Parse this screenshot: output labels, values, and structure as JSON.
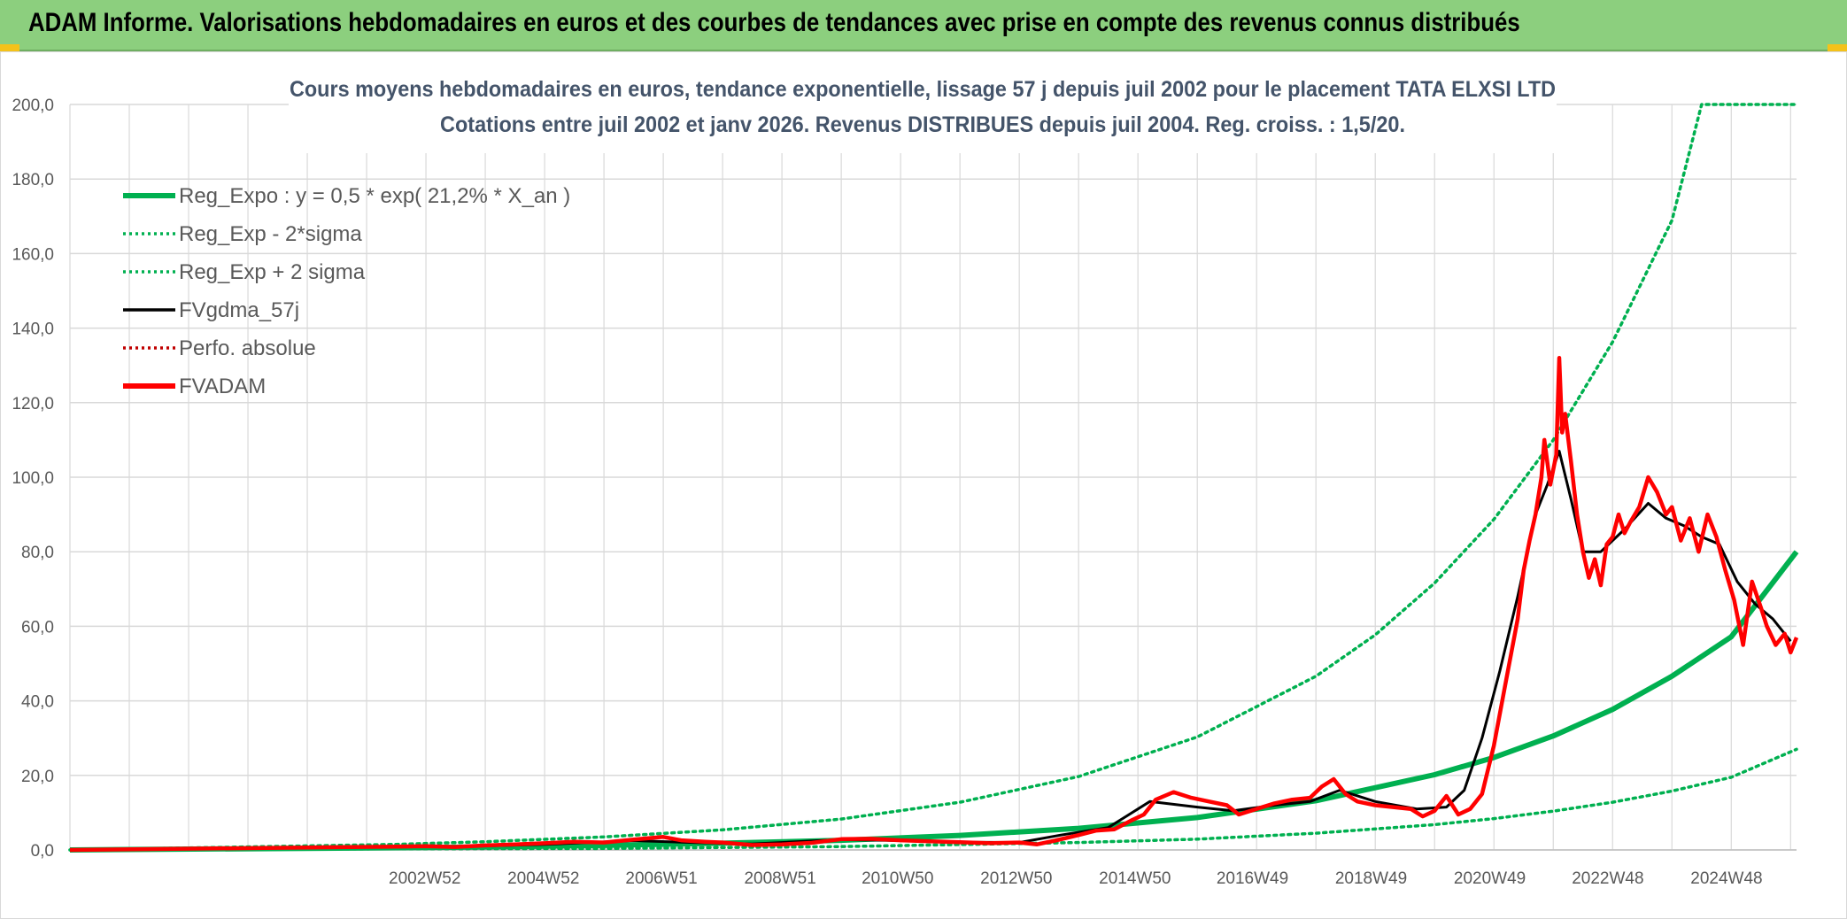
{
  "banner": {
    "title": "ADAM Informe. Valorisations hebdomadaires en euros et des courbes de tendances avec prise en compte des revenus connus distribués"
  },
  "colors": {
    "banner_bg": "#8ccf7e",
    "reg_green": "#00b050",
    "red": "#ff0000",
    "black": "#000000",
    "grid": "#d9d9d9",
    "axis_text": "#595959",
    "title_text": "#44546a"
  },
  "chart_data": {
    "type": "line",
    "title": "Cours moyens hebdomadaires en euros, tendance exponentielle, lissage 57 j depuis juil 2002 pour le placement TATA  ELXSI LTD",
    "subtitle": "Cotations entre juil 2002 et janv 2026. Revenus DISTRIBUES depuis juil 2004. Reg. croiss. : 1,5/20.",
    "xlabel": "",
    "ylabel": "",
    "x_range": [
      1997.0,
      2026.1
    ],
    "ylim": [
      0,
      200
    ],
    "y_ticks": [
      "0,0",
      "20,0",
      "40,0",
      "60,0",
      "80,0",
      "100,0",
      "120,0",
      "140,0",
      "160,0",
      "180,0",
      "200,0"
    ],
    "x_ticks": [
      {
        "label": "2002W52",
        "x": 2002.98
      },
      {
        "label": "2004W52",
        "x": 2004.98
      },
      {
        "label": "2006W51",
        "x": 2006.97
      },
      {
        "label": "2008W51",
        "x": 2008.97
      },
      {
        "label": "2010W50",
        "x": 2010.95
      },
      {
        "label": "2012W50",
        "x": 2012.95
      },
      {
        "label": "2014W50",
        "x": 2014.95
      },
      {
        "label": "2016W49",
        "x": 2016.93
      },
      {
        "label": "2018W49",
        "x": 2018.93
      },
      {
        "label": "2020W49",
        "x": 2020.93
      },
      {
        "label": "2022W48",
        "x": 2022.92
      },
      {
        "label": "2024W48",
        "x": 2024.92
      }
    ],
    "grid": true,
    "legend_position": "top-left",
    "series": [
      {
        "name": "Reg_Expo : y = 0,5 * exp( 21,2% *  X_an )",
        "style": "solid-thick",
        "color": "#00b050",
        "x": [
          1997.0,
          2002.5,
          2004,
          2006,
          2008,
          2010,
          2012,
          2014,
          2016,
          2018,
          2020,
          2021,
          2022,
          2023,
          2024,
          2025,
          2026.1
        ],
        "y": [
          0,
          0.6,
          0.8,
          1.2,
          1.8,
          2.6,
          3.9,
          5.8,
          8.7,
          13.2,
          20.2,
          24.8,
          30.6,
          37.7,
          46.6,
          57.2,
          80.0
        ]
      },
      {
        "name": "Reg_Exp - 2*sigma",
        "style": "dotted",
        "color": "#00b050",
        "x": [
          1997.0,
          2002.5,
          2006,
          2010,
          2014,
          2016,
          2018,
          2020,
          2021,
          2022,
          2023,
          2024,
          2025,
          2026.1
        ],
        "y": [
          0,
          0.3,
          0.4,
          0.9,
          2.0,
          2.9,
          4.5,
          6.8,
          8.4,
          10.4,
          12.8,
          15.8,
          19.5,
          27.0
        ]
      },
      {
        "name": "Reg_Exp + 2 sigma",
        "style": "dotted",
        "color": "#00b050",
        "x": [
          1997.0,
          2002.5,
          2004,
          2006,
          2008,
          2010,
          2012,
          2014,
          2016,
          2018,
          2019,
          2020,
          2021,
          2022,
          2023,
          2024,
          2024.5,
          2026.1
        ],
        "y": [
          0,
          1.5,
          2.2,
          3.5,
          5.4,
          8.3,
          12.8,
          19.7,
          30.3,
          46.6,
          57.7,
          71.6,
          88.7,
          110.0,
          136.3,
          168.9,
          200,
          200
        ]
      },
      {
        "name": "FVgdma_57j",
        "style": "solid",
        "color": "#000000",
        "x": [
          1997.0,
          2002.5,
          2003.5,
          2005,
          2006.5,
          2007.5,
          2008.5,
          2010,
          2011,
          2012,
          2013,
          2013.7,
          2014.5,
          2015.2,
          2016,
          2016.6,
          2017.3,
          2017.9,
          2018.4,
          2019,
          2019.7,
          2020.2,
          2020.5,
          2020.8,
          2021.1,
          2021.4,
          2021.7,
          2021.9,
          2022.1,
          2022.3,
          2022.5,
          2022.8,
          2023.2,
          2023.6,
          2023.9,
          2024.2,
          2024.5,
          2024.8,
          2025.1,
          2025.4,
          2025.7,
          2026.0
        ],
        "y": [
          0,
          0.8,
          0.9,
          1.5,
          2.5,
          2.0,
          1.6,
          2.8,
          2.5,
          2.1,
          2.0,
          4.0,
          6.0,
          13.0,
          11.5,
          10.5,
          12.0,
          13.0,
          16.0,
          13.0,
          11.0,
          11.5,
          16.0,
          30.0,
          48.0,
          68.0,
          90.0,
          98.0,
          107.0,
          94.0,
          80.0,
          80.0,
          86.0,
          93.0,
          89.0,
          87.0,
          84.0,
          82.0,
          72.0,
          66.0,
          62.0,
          56.0
        ]
      },
      {
        "name": "Perfo. absolue",
        "style": "dotted",
        "color": "#c00000",
        "x": [],
        "y": []
      },
      {
        "name": "FVADAM",
        "style": "solid-thick",
        "color": "#ff0000",
        "x": [
          1997.0,
          2002.5,
          2003.0,
          2003.5,
          2004.0,
          2004.5,
          2005.0,
          2005.5,
          2006.0,
          2006.5,
          2007.0,
          2007.3,
          2007.7,
          2008.0,
          2008.5,
          2009.0,
          2009.5,
          2010.0,
          2010.5,
          2011.0,
          2011.5,
          2012.0,
          2012.5,
          2013.0,
          2013.3,
          2013.6,
          2014.0,
          2014.3,
          2014.6,
          2014.9,
          2015.1,
          2015.3,
          2015.6,
          2015.9,
          2016.2,
          2016.5,
          2016.7,
          2017.0,
          2017.3,
          2017.6,
          2017.9,
          2018.1,
          2018.3,
          2018.5,
          2018.7,
          2019.0,
          2019.3,
          2019.6,
          2019.8,
          2020.0,
          2020.2,
          2020.4,
          2020.6,
          2020.8,
          2021.0,
          2021.2,
          2021.4,
          2021.5,
          2021.6,
          2021.7,
          2021.8,
          2021.85,
          2021.95,
          2022.05,
          2022.1,
          2022.15,
          2022.2,
          2022.3,
          2022.4,
          2022.5,
          2022.6,
          2022.7,
          2022.8,
          2022.9,
          2023.0,
          2023.1,
          2023.2,
          2023.3,
          2023.45,
          2023.6,
          2023.75,
          2023.9,
          2024.0,
          2024.15,
          2024.3,
          2024.45,
          2024.6,
          2024.75,
          2024.9,
          2025.05,
          2025.2,
          2025.35,
          2025.5,
          2025.6,
          2025.75,
          2025.9,
          2026.0,
          2026.1
        ],
        "y": [
          0,
          0.9,
          1.0,
          0.8,
          1.2,
          1.5,
          1.8,
          2.2,
          2.0,
          2.8,
          3.5,
          2.6,
          2.2,
          2.0,
          1.3,
          1.5,
          1.9,
          2.9,
          3.0,
          2.6,
          2.3,
          2.1,
          1.8,
          2.0,
          1.5,
          2.5,
          4.0,
          5.2,
          5.5,
          8.0,
          9.5,
          13.5,
          15.5,
          14.0,
          13.0,
          12.0,
          9.5,
          11.0,
          12.5,
          13.5,
          14.0,
          17.0,
          19.0,
          15.0,
          13.0,
          12.0,
          11.5,
          11.0,
          9.0,
          10.5,
          14.5,
          9.5,
          11.0,
          15.0,
          28.0,
          45.0,
          62.0,
          75.0,
          83.0,
          90.0,
          100.0,
          110.0,
          98.0,
          106.0,
          132.0,
          112.0,
          117.0,
          104.0,
          90.0,
          80.0,
          73.0,
          78.0,
          71.0,
          82.0,
          84.0,
          90.0,
          85.0,
          88.0,
          92.0,
          100.0,
          96.0,
          90.0,
          92.0,
          83.0,
          89.0,
          80.0,
          90.0,
          84.0,
          75.0,
          67.0,
          55.0,
          72.0,
          65.0,
          60.0,
          55.0,
          58.0,
          53.0,
          57.0
        ]
      }
    ]
  }
}
